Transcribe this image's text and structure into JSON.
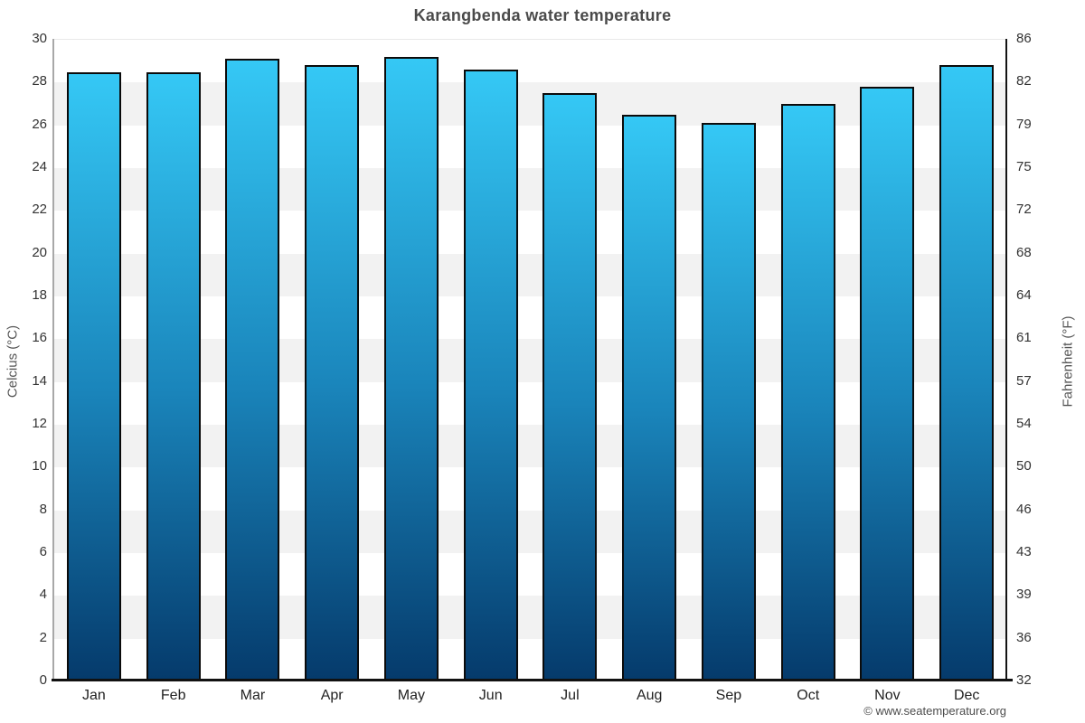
{
  "footer": {
    "copyright": "© www.seatemperature.org"
  },
  "chart_data": {
    "type": "bar",
    "title": "Karangbenda water temperature",
    "categories": [
      "Jan",
      "Feb",
      "Mar",
      "Apr",
      "May",
      "Jun",
      "Jul",
      "Aug",
      "Sep",
      "Oct",
      "Nov",
      "Dec"
    ],
    "values": [
      28.5,
      28.5,
      29.1,
      28.8,
      29.2,
      28.6,
      27.5,
      26.5,
      26.1,
      27.0,
      27.8,
      28.8
    ],
    "values_unit": "°C",
    "ylabel_left": "Celcius (°C)",
    "ylabel_right": "Fahrenheit (°F)",
    "ylim_celsius": [
      0,
      30
    ],
    "celsius_ticks": [
      30,
      28,
      26,
      24,
      22,
      20,
      18,
      16,
      14,
      12,
      10,
      8,
      6,
      4,
      2,
      0
    ],
    "fahrenheit_ticks": [
      86,
      82,
      79,
      75,
      72,
      68,
      64,
      61,
      57,
      54,
      50,
      46,
      43,
      39,
      36,
      32
    ],
    "grid": "alternating horizontal bands every 2°C",
    "legend": false,
    "colors": {
      "bar_top": "#35c8f5",
      "bar_mid": "#1a85bb",
      "bar_bottom": "#053a6b",
      "bar_border": "#0b0b0b",
      "stripe_gray": "#f2f2f2",
      "stripe_white": "#ffffff",
      "axis_dark": "#141414",
      "axis_light": "#a8a8a8",
      "title_text": "#4a4a4a"
    }
  }
}
